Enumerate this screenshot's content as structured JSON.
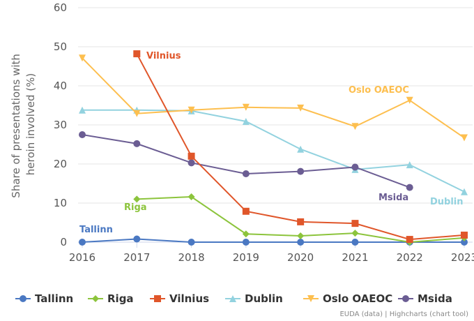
{
  "chart_data": {
    "type": "line",
    "ylabel": "Share of presentations with heroin involved (%)",
    "ylabel_lines": [
      "Share of presentations with",
      "heroin involved (%)"
    ],
    "ylim": [
      0,
      60
    ],
    "yticks": [
      0,
      10,
      20,
      30,
      40,
      50,
      60
    ],
    "x": [
      2016,
      2017,
      2018,
      2019,
      2020,
      2021,
      2022,
      2023
    ],
    "grid": true,
    "legend": "bottom",
    "series": [
      {
        "name": "Tallinn",
        "color": "#4a78c2",
        "marker": "circle",
        "values": [
          0,
          0.8,
          0,
          0,
          0,
          0,
          0,
          0
        ]
      },
      {
        "name": "Riga",
        "color": "#8cc43c",
        "marker": "diamond",
        "values": [
          null,
          11,
          11.6,
          2.1,
          1.6,
          2.3,
          0,
          1.1
        ]
      },
      {
        "name": "Vilnius",
        "color": "#e0562a",
        "marker": "square",
        "values": [
          null,
          48.2,
          22,
          7.9,
          5.2,
          4.8,
          0.7,
          1.8
        ]
      },
      {
        "name": "Dublin",
        "color": "#92d2df",
        "marker": "triangle",
        "values": [
          33.8,
          33.8,
          33.6,
          30.9,
          23.8,
          18.6,
          19.8,
          12.9
        ]
      },
      {
        "name": "Oslo OAEOC",
        "color": "#fdbf4f",
        "marker": "triangle-down",
        "values": [
          47.1,
          32.9,
          33.8,
          34.5,
          34.3,
          29.6,
          36.3,
          26.7
        ]
      },
      {
        "name": "Msida",
        "color": "#6b5d93",
        "marker": "circle",
        "values": [
          27.5,
          25.2,
          20.3,
          17.5,
          18.1,
          19.2,
          14,
          null
        ]
      }
    ]
  },
  "credit": "EUDA (data) | Highcharts (chart tool)"
}
